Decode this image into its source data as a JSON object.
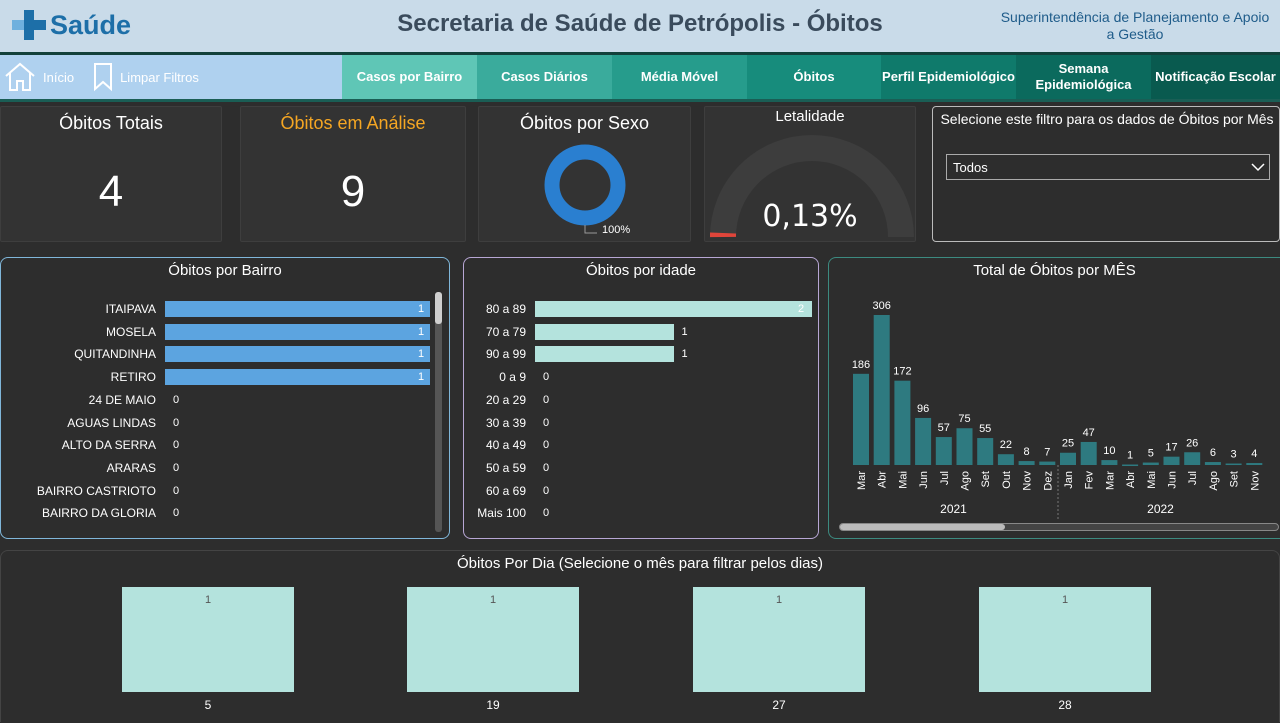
{
  "header": {
    "logo_text": "Saúde",
    "title": "Secretaria de Saúde de Petrópolis - Óbitos",
    "superintendence": "Superintendência de Planejamento e Apoio a Gestão"
  },
  "nav": {
    "home_label": "Início",
    "clear_filters_label": "Limpar Filtros",
    "tabs": [
      {
        "label": "Casos por Bairro",
        "color": "#5fc6b6"
      },
      {
        "label": "Casos Diários",
        "color": "#3aab9c"
      },
      {
        "label": "Média Móvel",
        "color": "#269c8c"
      },
      {
        "label": "Óbitos",
        "color": "#178c7c"
      },
      {
        "label": "Perfil Epidemiológico",
        "color": "#0f7a6b"
      },
      {
        "label": "Semana Epidemiológica",
        "color": "#0b6a5d"
      },
      {
        "label": "Notificação Escolar",
        "color": "#095a4f"
      }
    ]
  },
  "kpis": {
    "total_title": "Óbitos Totais",
    "total_value": "4",
    "analysis_title": "Óbitos em Análise",
    "analysis_value": "9",
    "sex_title": "Óbitos por Sexo",
    "sex_pct_label": "100%",
    "lethality_title": "Letalidade",
    "lethality_value": "0,13%"
  },
  "filter": {
    "title": "Selecione este filtro para os dados de Óbitos por Mês",
    "selected": "Todos"
  },
  "colors": {
    "accent_orange": "#f5a623",
    "bairro_bar": "#5ca4e0",
    "idade_bar": "#b4e3dd",
    "month_bar": "#2e7a80",
    "day_bar": "#b4e3dd",
    "donut": "#2a7fd0",
    "gauge_bg": "#3d3d3d",
    "gauge_fill": "#e0453a"
  },
  "chart_data": [
    {
      "type": "bar",
      "title": "Óbitos por Bairro",
      "orientation": "horizontal",
      "categories": [
        "ITAIPAVA",
        "MOSELA",
        "QUITANDINHA",
        "RETIRO",
        "24 DE MAIO",
        "AGUAS LINDAS",
        "ALTO DA SERRA",
        "ARARAS",
        "BAIRRO CASTRIOTO",
        "BAIRRO DA GLORIA"
      ],
      "values": [
        1,
        1,
        1,
        1,
        0,
        0,
        0,
        0,
        0,
        0
      ]
    },
    {
      "type": "bar",
      "title": "Óbitos por idade",
      "orientation": "horizontal",
      "categories": [
        "80 a 89",
        "70 a 79",
        "90 a 99",
        "0 a 9",
        "20 a 29",
        "30 a 39",
        "40 a 49",
        "50 a 59",
        "60 a 69",
        "Mais 100"
      ],
      "values": [
        2,
        1,
        1,
        0,
        0,
        0,
        0,
        0,
        0,
        0
      ]
    },
    {
      "type": "bar",
      "title": "Total de Óbitos por MÊS",
      "categories": [
        "Mar",
        "Abr",
        "Mai",
        "Jun",
        "Jul",
        "Ago",
        "Set",
        "Out",
        "Nov",
        "Dez",
        "Jan",
        "Fev",
        "Mar",
        "Abr",
        "Mai",
        "Jun",
        "Jul",
        "Ago",
        "Set",
        "Nov"
      ],
      "values": [
        186,
        306,
        172,
        96,
        57,
        75,
        55,
        22,
        8,
        7,
        25,
        47,
        10,
        1,
        5,
        17,
        26,
        6,
        3,
        4
      ],
      "years": [
        {
          "label": "2021",
          "count": 10
        },
        {
          "label": "2022",
          "count": 10
        }
      ]
    },
    {
      "type": "bar",
      "title": "Óbitos Por Dia (Selecione o mês para filtrar pelos dias)",
      "categories": [
        "5",
        "19",
        "27",
        "28"
      ],
      "values": [
        1,
        1,
        1,
        1
      ]
    }
  ]
}
